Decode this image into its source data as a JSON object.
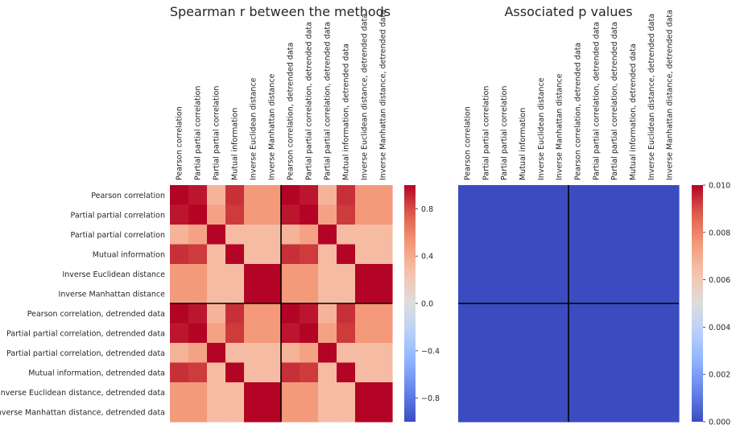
{
  "chart_data": [
    {
      "type": "heatmap",
      "title": "Spearman r between the methods",
      "row_labels": [
        "Pearson correlation",
        "Partial partial correlation",
        "Partial partial correlation",
        "Mutual information",
        "Inverse Euclidean distance",
        "Inverse Manhattan distance",
        "Pearson correlation, detrended data",
        "Partial partial correlation, detrended data",
        "Partial partial correlation, detrended data",
        "Mutual information, detrended data",
        "Inverse Euclidean distance, detrended data",
        "Inverse Manhattan distance, detrended data"
      ],
      "col_labels": [
        "Pearson correlation",
        "Partial partial correlation",
        "Partial partial correlation",
        "Mutual information",
        "Inverse Euclidean distance",
        "Inverse Manhattan distance",
        "Pearson correlation, detrended data",
        "Partial partial correlation, detrended data",
        "Partial partial correlation, detrended data",
        "Mutual information, detrended data",
        "Inverse Euclidean distance, detrended data",
        "Inverse Manhattan distance, detrended data"
      ],
      "values": [
        [
          1.0,
          0.95,
          0.35,
          0.88,
          0.5,
          0.5,
          1.0,
          0.95,
          0.35,
          0.88,
          0.5,
          0.5
        ],
        [
          0.95,
          1.0,
          0.45,
          0.85,
          0.5,
          0.5,
          0.95,
          1.0,
          0.45,
          0.85,
          0.5,
          0.5
        ],
        [
          0.35,
          0.45,
          1.0,
          0.3,
          0.3,
          0.3,
          0.35,
          0.45,
          1.0,
          0.3,
          0.3,
          0.3
        ],
        [
          0.88,
          0.85,
          0.3,
          1.0,
          0.3,
          0.3,
          0.88,
          0.85,
          0.3,
          1.0,
          0.3,
          0.3
        ],
        [
          0.5,
          0.5,
          0.3,
          0.3,
          1.0,
          1.0,
          0.5,
          0.5,
          0.3,
          0.3,
          1.0,
          1.0
        ],
        [
          0.5,
          0.5,
          0.3,
          0.3,
          1.0,
          1.0,
          0.5,
          0.5,
          0.3,
          0.3,
          1.0,
          1.0
        ],
        [
          1.0,
          0.95,
          0.35,
          0.88,
          0.5,
          0.5,
          1.0,
          0.95,
          0.35,
          0.88,
          0.5,
          0.5
        ],
        [
          0.95,
          1.0,
          0.45,
          0.85,
          0.5,
          0.5,
          0.95,
          1.0,
          0.45,
          0.85,
          0.5,
          0.5
        ],
        [
          0.35,
          0.45,
          1.0,
          0.3,
          0.3,
          0.3,
          0.35,
          0.45,
          1.0,
          0.3,
          0.3,
          0.3
        ],
        [
          0.88,
          0.85,
          0.3,
          1.0,
          0.3,
          0.3,
          0.88,
          0.85,
          0.3,
          1.0,
          0.3,
          0.3
        ],
        [
          0.5,
          0.5,
          0.3,
          0.3,
          1.0,
          1.0,
          0.5,
          0.5,
          0.3,
          0.3,
          1.0,
          1.0
        ],
        [
          0.5,
          0.5,
          0.3,
          0.3,
          1.0,
          1.0,
          0.5,
          0.5,
          0.3,
          0.3,
          1.0,
          1.0
        ]
      ],
      "vmin": -1.0,
      "vmax": 1.0,
      "colormap": "coolwarm",
      "colorbar_ticks": [
        -0.8,
        -0.4,
        0.0,
        0.4,
        0.8
      ],
      "colorbar_tick_labels": [
        "−0.8",
        "−0.4",
        "0.0",
        "0.4",
        "0.8"
      ],
      "divider_after_index": 6,
      "show_row_labels": true
    },
    {
      "type": "heatmap",
      "title": "Associated p values",
      "col_labels": [
        "Pearson correlation",
        "Partial partial correlation",
        "Partial partial correlation",
        "Mutual information",
        "Inverse Euclidean distance",
        "Inverse Manhattan distance",
        "Pearson correlation, detrended data",
        "Partial partial correlation, detrended data",
        "Partial partial correlation, detrended data",
        "Mutual information, detrended data",
        "Inverse Euclidean distance, detrended data",
        "Inverse Manhattan distance, detrended data"
      ],
      "values": [
        [
          0,
          0,
          0,
          0,
          0,
          0,
          0,
          0,
          0,
          0,
          0,
          0
        ],
        [
          0,
          0,
          0,
          0,
          0,
          0,
          0,
          0,
          0,
          0,
          0,
          0
        ],
        [
          0,
          0,
          0,
          0,
          0,
          0,
          0,
          0,
          0,
          0,
          0,
          0
        ],
        [
          0,
          0,
          0,
          0,
          0,
          0,
          0,
          0,
          0,
          0,
          0,
          0
        ],
        [
          0,
          0,
          0,
          0,
          0,
          0,
          0,
          0,
          0,
          0,
          0,
          0
        ],
        [
          0,
          0,
          0,
          0,
          0,
          0,
          0,
          0,
          0,
          0,
          0,
          0
        ],
        [
          0,
          0,
          0,
          0,
          0,
          0,
          0,
          0,
          0,
          0,
          0,
          0
        ],
        [
          0,
          0,
          0,
          0,
          0,
          0,
          0,
          0,
          0,
          0,
          0,
          0
        ],
        [
          0,
          0,
          0,
          0,
          0,
          0,
          0,
          0,
          0,
          0,
          0,
          0
        ],
        [
          0,
          0,
          0,
          0,
          0,
          0,
          0,
          0,
          0,
          0,
          0,
          0
        ],
        [
          0,
          0,
          0,
          0,
          0,
          0,
          0,
          0,
          0,
          0,
          0,
          0
        ],
        [
          0,
          0,
          0,
          0,
          0,
          0,
          0,
          0,
          0,
          0,
          0,
          0
        ]
      ],
      "vmin": 0.0,
      "vmax": 0.01,
      "colormap": "coolwarm",
      "colorbar_ticks": [
        0.0,
        0.002,
        0.004,
        0.006,
        0.008,
        0.01
      ],
      "colorbar_tick_labels": [
        "0.000",
        "0.002",
        "0.004",
        "0.006",
        "0.008",
        "0.010"
      ],
      "divider_after_index": 6,
      "show_row_labels": false
    }
  ]
}
